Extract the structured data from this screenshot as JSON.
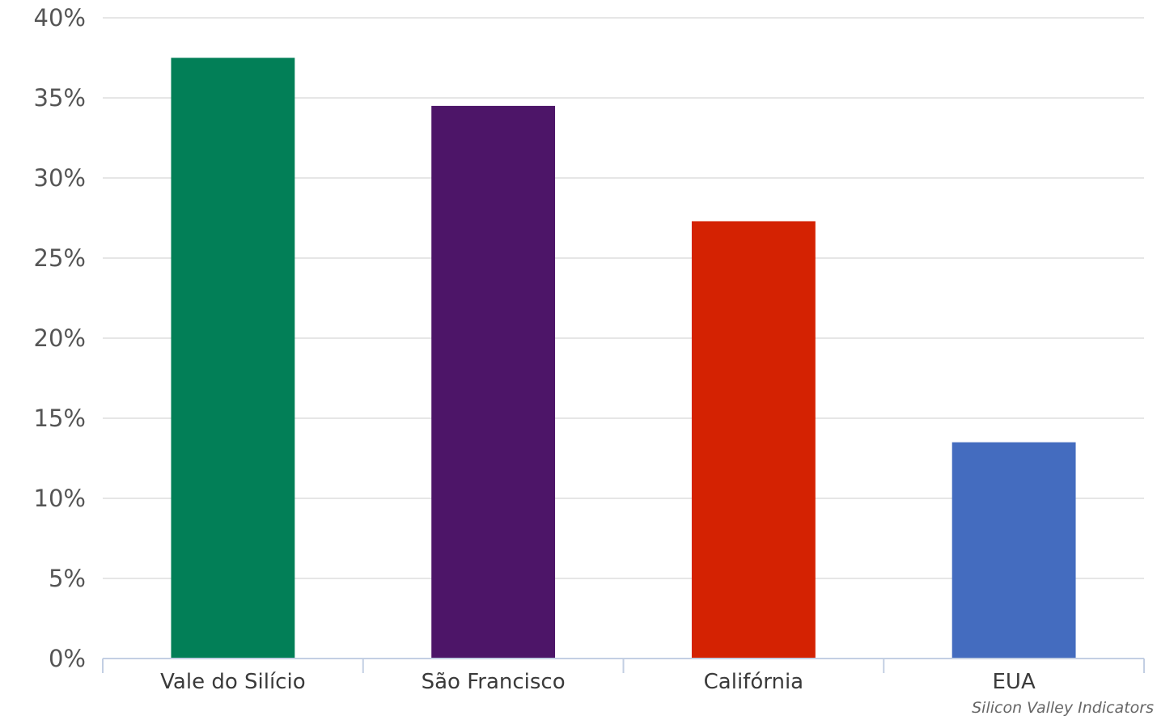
{
  "chart_data": {
    "type": "bar",
    "categories": [
      "Vale do Silício",
      "São Francisco",
      "Califórnia",
      "EUA"
    ],
    "values": [
      37.5,
      34.5,
      27.3,
      13.5
    ],
    "colors": [
      "#027F57",
      "#4D1568",
      "#D42202",
      "#446CBF"
    ],
    "ylim": [
      0,
      40
    ],
    "yticks": [
      0,
      5,
      10,
      15,
      20,
      25,
      30,
      35,
      40
    ],
    "ytick_labels": [
      "0%",
      "5%",
      "10%",
      "15%",
      "20%",
      "25%",
      "30%",
      "35%",
      "40%"
    ],
    "grid": true,
    "legend": "none",
    "title": "",
    "xlabel": "",
    "ylabel": ""
  },
  "source": "Silicon Valley Indicators"
}
